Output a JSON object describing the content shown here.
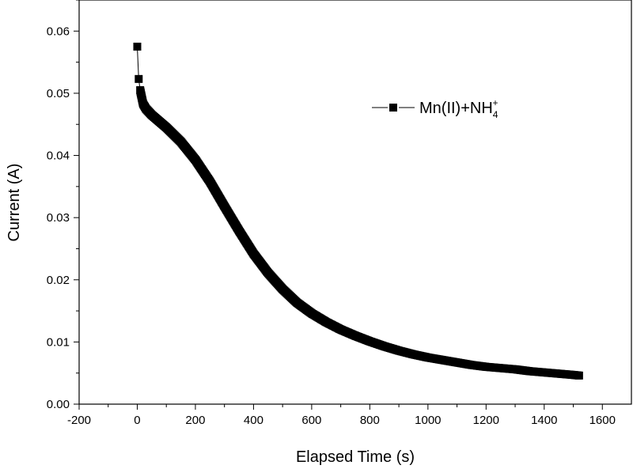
{
  "chart_data": {
    "type": "scatter",
    "title": "",
    "xlabel": "Elapsed Time (s)",
    "ylabel": "Current (A)",
    "xlim": [
      -200,
      1700
    ],
    "ylim": [
      0.0,
      0.065
    ],
    "x_ticks": [
      -200,
      0,
      200,
      400,
      600,
      800,
      1000,
      1200,
      1400,
      1600
    ],
    "x_tick_labels": [
      "-200",
      "0",
      "200",
      "400",
      "600",
      "800",
      "1000",
      "1200",
      "1400",
      "1600"
    ],
    "y_ticks": [
      0.0,
      0.01,
      0.02,
      0.03,
      0.04,
      0.05,
      0.06
    ],
    "y_tick_labels": [
      "0.00",
      "0.01",
      "0.02",
      "0.03",
      "0.04",
      "0.05",
      "0.06"
    ],
    "grid": false,
    "legend_position": "top-right",
    "series": [
      {
        "name": "Mn(II)+NH4+",
        "legend_label_main": "Mn(II)+NH",
        "legend_label_sub": "4",
        "legend_label_sup": "+",
        "marker": "square",
        "color": "#000000",
        "x": [
          0,
          5,
          10,
          20,
          30,
          50,
          75,
          100,
          150,
          200,
          250,
          300,
          350,
          400,
          450,
          500,
          550,
          600,
          650,
          700,
          750,
          800,
          850,
          900,
          950,
          1000,
          1050,
          1100,
          1150,
          1200,
          1250,
          1300,
          1350,
          1400,
          1450,
          1500,
          1520
        ],
        "y": [
          0.0575,
          0.0523,
          0.0505,
          0.0483,
          0.0475,
          0.0465,
          0.0455,
          0.0445,
          0.0422,
          0.0393,
          0.0358,
          0.0318,
          0.0279,
          0.0242,
          0.0211,
          0.0185,
          0.0163,
          0.0146,
          0.0132,
          0.012,
          0.011,
          0.0101,
          0.0093,
          0.0086,
          0.008,
          0.0075,
          0.0071,
          0.0067,
          0.0063,
          0.006,
          0.0058,
          0.0056,
          0.0053,
          0.0051,
          0.0049,
          0.0047,
          0.0046
        ]
      }
    ]
  }
}
